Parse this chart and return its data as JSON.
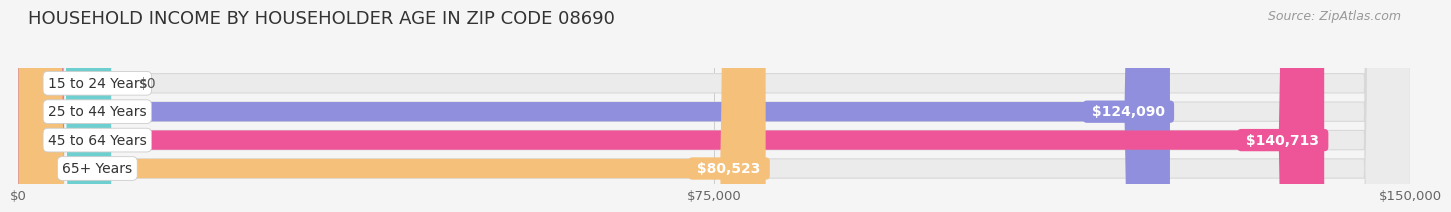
{
  "title": "HOUSEHOLD INCOME BY HOUSEHOLDER AGE IN ZIP CODE 08690",
  "source": "Source: ZipAtlas.com",
  "categories": [
    "15 to 24 Years",
    "25 to 44 Years",
    "45 to 64 Years",
    "65+ Years"
  ],
  "values": [
    0,
    124090,
    140713,
    80523
  ],
  "bar_colors": [
    "#6dcfcf",
    "#8f8fdd",
    "#ee5599",
    "#f5c07a"
  ],
  "value_badge_colors": [
    "#6dcfcf",
    "#8f8fdd",
    "#ee5599",
    "#f5c07a"
  ],
  "xlim": [
    0,
    150000
  ],
  "xticks": [
    0,
    75000,
    150000
  ],
  "xtick_labels": [
    "$0",
    "$75,000",
    "$150,000"
  ],
  "value_labels": [
    "$0",
    "$124,090",
    "$140,713",
    "$80,523"
  ],
  "background_color": "#f5f5f5",
  "bar_bg_color": "#ebebeb",
  "title_fontsize": 13,
  "source_fontsize": 9,
  "label_fontsize": 10,
  "tick_fontsize": 9.5
}
